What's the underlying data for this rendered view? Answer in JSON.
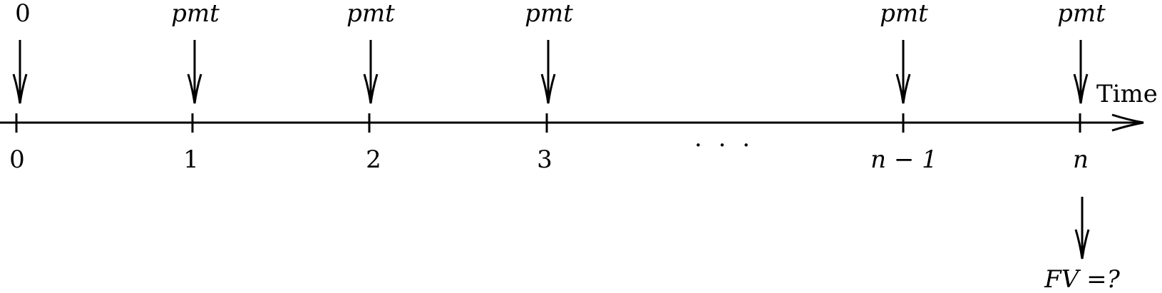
{
  "diagram": {
    "axis_label": "Time",
    "ellipsis": ". . .",
    "top_labels": [
      "0",
      "pmt",
      "pmt",
      "pmt",
      "pmt",
      "pmt"
    ],
    "tick_labels": [
      "0",
      "1",
      "2",
      "3",
      "n − 1",
      "n"
    ],
    "result_label": "FV =?"
  }
}
